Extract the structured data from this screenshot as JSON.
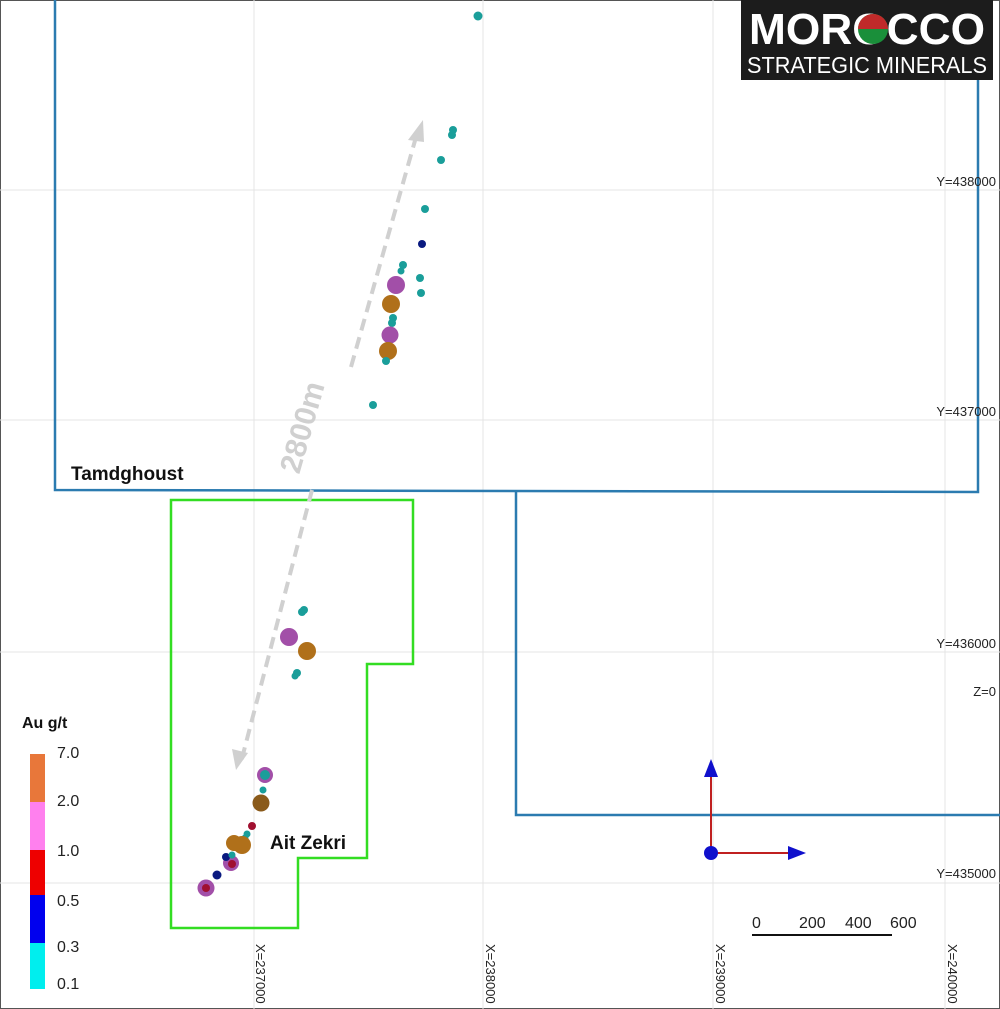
{
  "logo": {
    "brand": "MOROCCO",
    "sub": "STRATEGIC MINERALS"
  },
  "grid": {
    "y_labels": [
      "Y=438000",
      "Y=437000",
      "Y=436000",
      "Y=435000"
    ],
    "x_labels": [
      "X=237000",
      "X=238000",
      "X=239000",
      "X=240000"
    ],
    "z_label": "Z=0"
  },
  "permits": [
    {
      "name": "Tamdghoust",
      "color": "#2b7bb0"
    },
    {
      "name": "Ait Zekri",
      "color": "#33dd22"
    }
  ],
  "distance": {
    "label": "2800m"
  },
  "legend": {
    "title": "Au g/t",
    "ticks": [
      "7.0",
      "2.0",
      "1.0",
      "0.5",
      "0.3",
      "0.1"
    ],
    "classes": [
      {
        "range": "2.0-7.0",
        "color": "#e8773a"
      },
      {
        "range": "1.0-2.0",
        "color": "#ff80ee"
      },
      {
        "range": "0.5-1.0",
        "color": "#ee0000"
      },
      {
        "range": "0.3-0.5",
        "color": "#0000ee"
      },
      {
        "range": "0.1-0.3",
        "color": "#00eeee"
      }
    ]
  },
  "scale_bar": {
    "labels": [
      "0",
      "200",
      "400",
      "600"
    ]
  },
  "samples": [
    {
      "cls": "cyan",
      "color": "#1a9e9a"
    },
    {
      "cls": "navy",
      "color": "#0a1a80"
    },
    {
      "cls": "purple",
      "color": "#a24fa8"
    },
    {
      "cls": "gold",
      "color": "#b0701a"
    },
    {
      "cls": "red",
      "color": "#a01030"
    }
  ]
}
